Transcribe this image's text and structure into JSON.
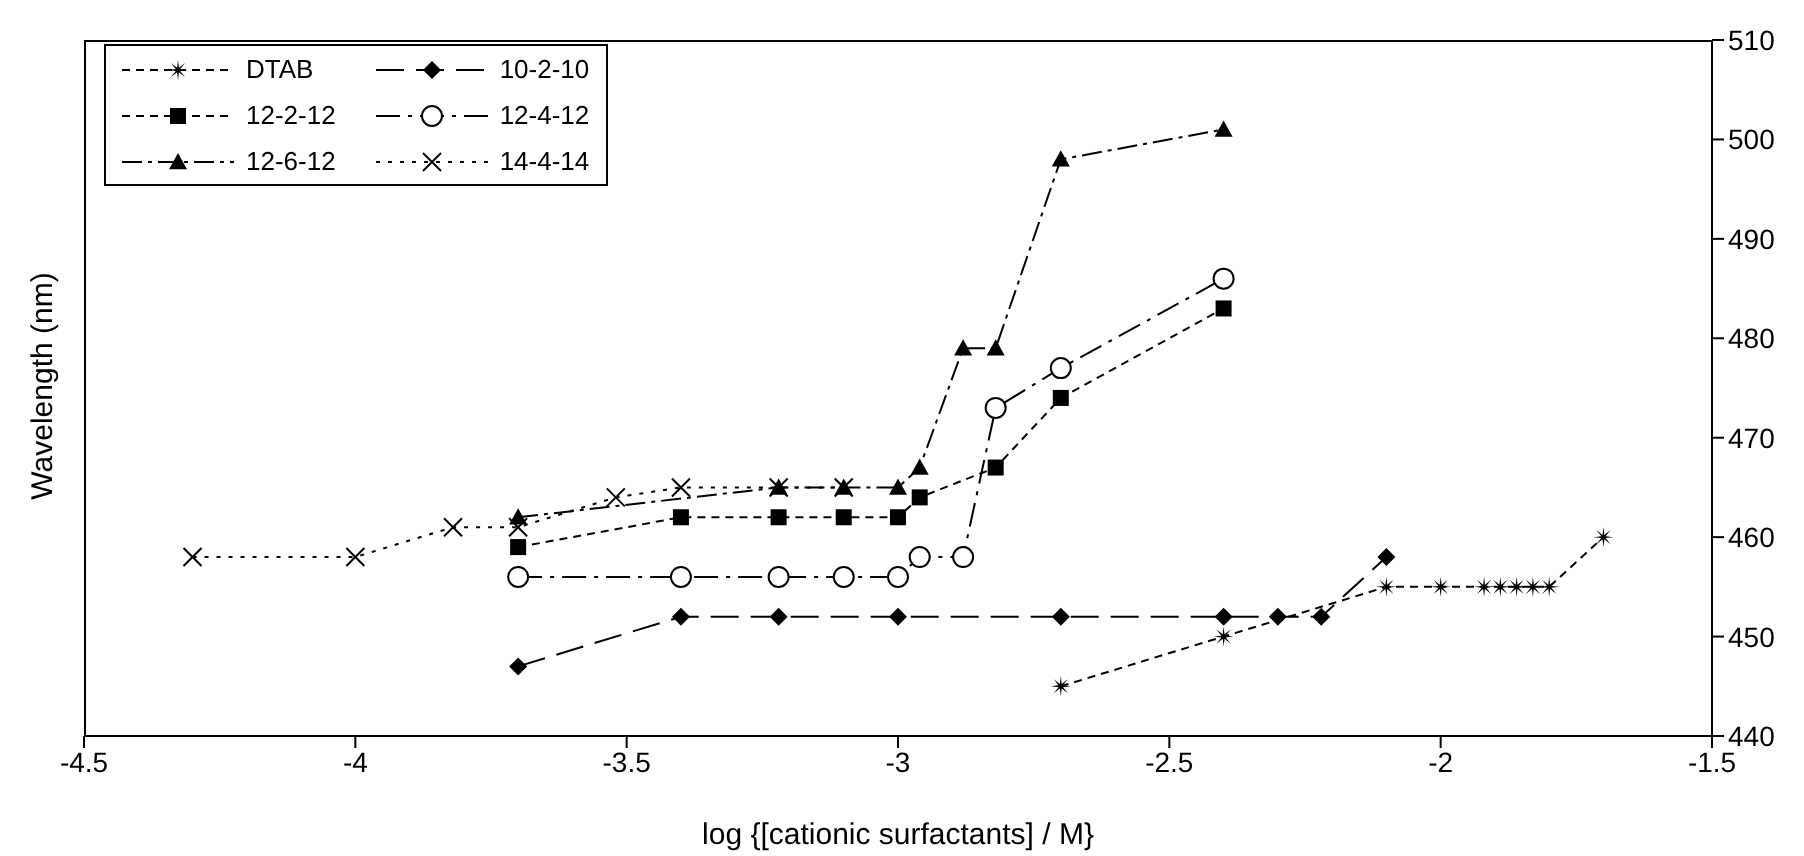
{
  "chart_data": {
    "type": "line",
    "xlabel": "log {[cationic surfactants] / M}",
    "ylabel": "Wavelength (nm)",
    "xlim": [
      -4.5,
      -1.5
    ],
    "xticks": [
      -4.5,
      -4,
      -3.5,
      -3,
      -2.5,
      -2,
      -1.5
    ],
    "ylim": [
      440,
      510
    ],
    "yticks": [
      440,
      450,
      460,
      470,
      480,
      490,
      500,
      510
    ],
    "grid": false,
    "legend": "top left",
    "series": [
      {
        "name": "DTAB",
        "color": "#000000",
        "marker": "star",
        "line_style": "dashed",
        "x": [
          -2.7,
          -2.4,
          -2.1,
          -2.0,
          -1.92,
          -1.89,
          -1.86,
          -1.83,
          -1.8,
          -1.7
        ],
        "values": [
          445,
          450,
          455,
          455,
          455,
          455,
          455,
          455,
          455,
          460
        ]
      },
      {
        "name": "10-2-10",
        "color": "#000000",
        "marker": "diamond",
        "line_style": "dashed",
        "x": [
          -3.7,
          -3.4,
          -3.22,
          -3.0,
          -2.7,
          -2.4,
          -2.3,
          -2.22,
          -2.1
        ],
        "values": [
          447,
          452,
          452,
          452,
          452,
          452,
          452,
          452,
          458
        ]
      },
      {
        "name": "12-2-12",
        "color": "#000000",
        "marker": "square",
        "line_style": "dashed",
        "x": [
          -3.7,
          -3.4,
          -3.22,
          -3.1,
          -3.0,
          -2.96,
          -2.82,
          -2.7,
          -2.4
        ],
        "values": [
          459,
          462,
          462,
          462,
          462,
          464,
          467,
          474,
          483
        ]
      },
      {
        "name": "12-4-12",
        "color": "#000000",
        "marker": "circle",
        "line_style": "dashed",
        "x": [
          -3.7,
          -3.4,
          -3.22,
          -3.1,
          -3.0,
          -2.96,
          -2.88,
          -2.82,
          -2.7,
          -2.4
        ],
        "values": [
          456,
          456,
          456,
          456,
          456,
          458,
          458,
          473,
          477,
          486
        ]
      },
      {
        "name": "12-6-12",
        "color": "#000000",
        "marker": "triangle",
        "line_style": "dashed",
        "x": [
          -3.7,
          -3.22,
          -3.1,
          -3.0,
          -2.96,
          -2.88,
          -2.82,
          -2.7,
          -2.4
        ],
        "values": [
          462,
          465,
          465,
          465,
          467,
          479,
          479,
          498,
          501
        ]
      },
      {
        "name": "14-4-14",
        "color": "#000000",
        "marker": "cross",
        "line_style": "dotted",
        "x": [
          -4.3,
          -4.0,
          -3.82,
          -3.7,
          -3.52,
          -3.4,
          -3.22,
          -3.1
        ],
        "values": [
          458,
          458,
          461,
          461,
          464,
          465,
          465,
          465
        ]
      }
    ]
  }
}
